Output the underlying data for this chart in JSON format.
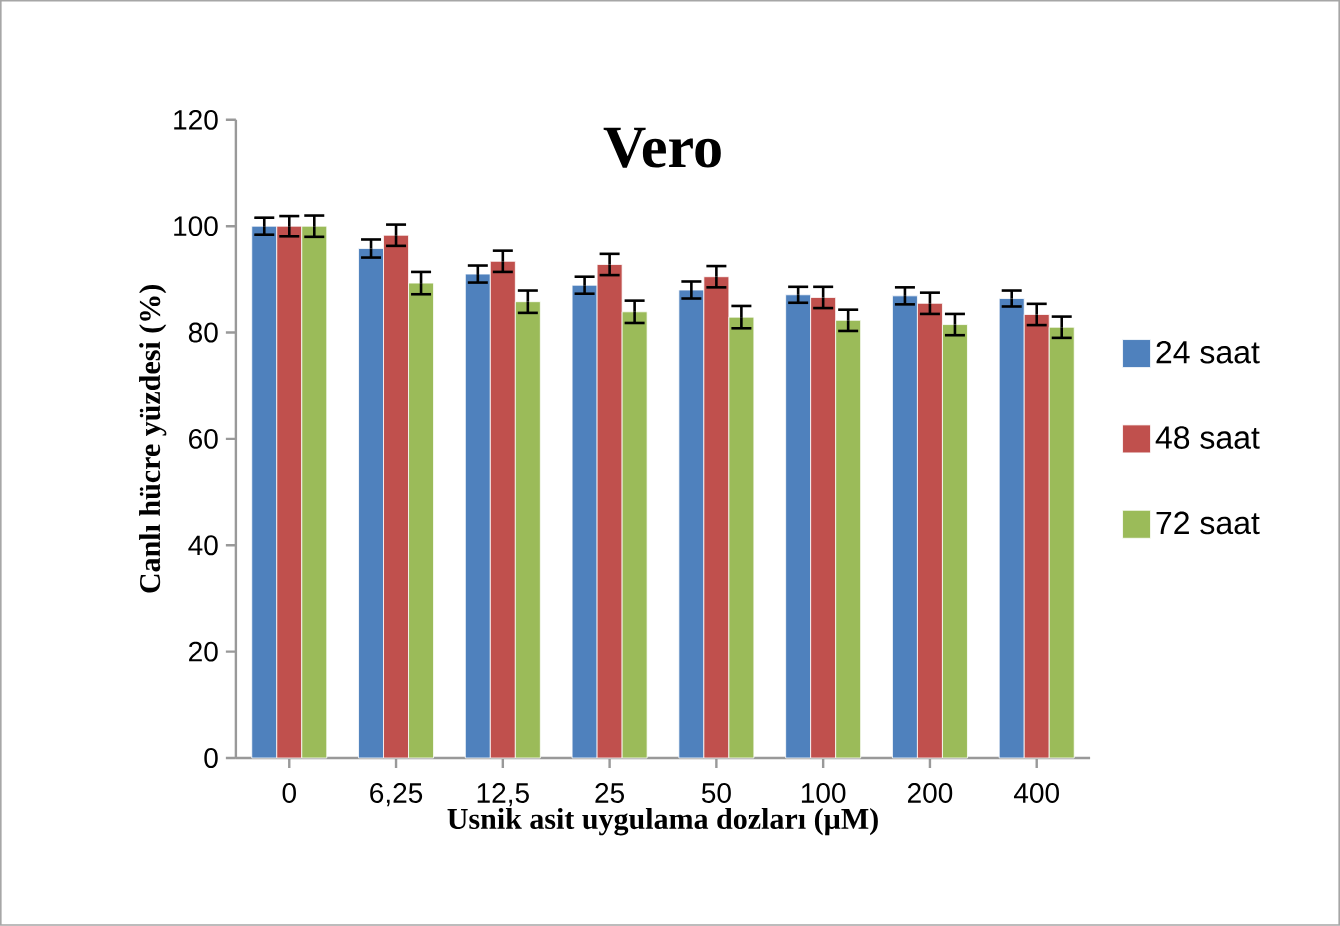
{
  "chart_data": {
    "type": "bar",
    "title": "Vero",
    "xlabel": "Usnik asit uygulama dozları (µM)",
    "ylabel": "Canlı hücre yüzdesi (%)",
    "categories": [
      "0",
      "6,25",
      "12,5",
      "25",
      "50",
      "100",
      "200",
      "400"
    ],
    "series": [
      {
        "name": "24 saat",
        "color": "#4f81bd",
        "values": [
          100,
          95.8,
          91,
          88.9,
          88,
          87.1,
          86.9,
          86.4
        ],
        "errors": [
          1.6,
          1.7,
          1.6,
          1.6,
          1.6,
          1.5,
          1.6,
          1.5
        ]
      },
      {
        "name": "48 saat",
        "color": "#c0504d",
        "values": [
          100,
          98.3,
          93.4,
          92.8,
          90.5,
          86.6,
          85.5,
          83.4
        ],
        "errors": [
          1.9,
          2,
          2,
          2,
          2,
          2,
          2,
          2
        ]
      },
      {
        "name": "72 saat",
        "color": "#9bbb59",
        "values": [
          100,
          89.3,
          85.8,
          83.9,
          82.9,
          82.3,
          81.5,
          81
        ],
        "errors": [
          2,
          2.1,
          2.1,
          2.1,
          2.1,
          2,
          2,
          2
        ]
      }
    ],
    "ylim": [
      0,
      120
    ],
    "yticks": [
      0,
      20,
      40,
      60,
      80,
      100,
      120
    ],
    "legend": "right",
    "grid": false
  }
}
